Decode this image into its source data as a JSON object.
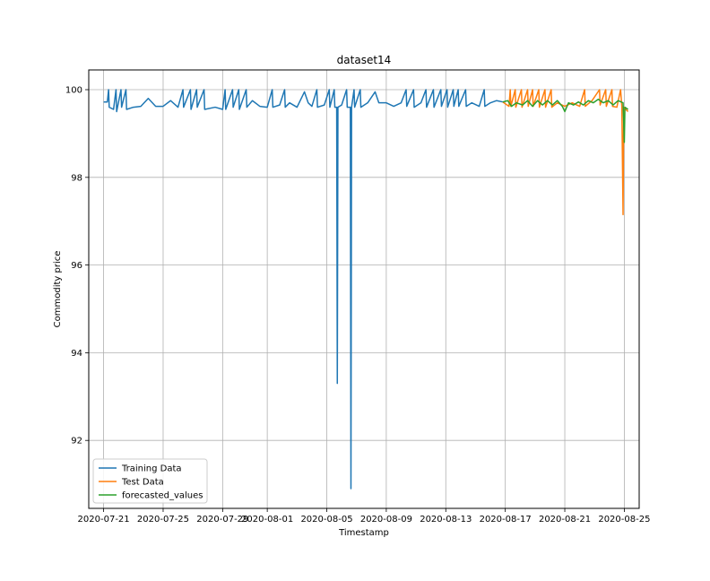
{
  "chart_data": {
    "type": "line",
    "title": "dataset14",
    "xlabel": "Timestamp",
    "ylabel": "Commodity price",
    "x_ticks": [
      "2020-07-21",
      "2020-07-25",
      "2020-07-29",
      "2020-08-01",
      "2020-08-05",
      "2020-08-09",
      "2020-08-13",
      "2020-08-17",
      "2020-08-21",
      "2020-08-25"
    ],
    "y_ticks": [
      92,
      94,
      96,
      98,
      100
    ],
    "xlim": [
      "2020-07-20",
      "2020-08-26"
    ],
    "ylim": [
      90.45,
      100.45
    ],
    "grid": true,
    "legend": "lower-left",
    "series": [
      {
        "name": "Training Data",
        "color": "#1f77b4",
        "points": [
          [
            "2020-07-21 00:00",
            99.72
          ],
          [
            "2020-07-21 06:00",
            99.72
          ],
          [
            "2020-07-21 08:00",
            100.0
          ],
          [
            "2020-07-21 09:00",
            99.6
          ],
          [
            "2020-07-21 16:00",
            99.55
          ],
          [
            "2020-07-21 20:00",
            100.0
          ],
          [
            "2020-07-21 21:00",
            99.5
          ],
          [
            "2020-07-22 04:00",
            100.0
          ],
          [
            "2020-07-22 05:00",
            99.6
          ],
          [
            "2020-07-22 12:00",
            100.0
          ],
          [
            "2020-07-22 13:00",
            99.55
          ],
          [
            "2020-07-23 00:00",
            99.6
          ],
          [
            "2020-07-23 12:00",
            99.62
          ],
          [
            "2020-07-24 00:00",
            99.8
          ],
          [
            "2020-07-24 12:00",
            99.62
          ],
          [
            "2020-07-25 00:00",
            99.62
          ],
          [
            "2020-07-25 12:00",
            99.75
          ],
          [
            "2020-07-26 00:00",
            99.6
          ],
          [
            "2020-07-26 08:00",
            100.0
          ],
          [
            "2020-07-26 09:00",
            99.6
          ],
          [
            "2020-07-26 20:00",
            100.0
          ],
          [
            "2020-07-26 21:00",
            99.55
          ],
          [
            "2020-07-27 06:00",
            100.0
          ],
          [
            "2020-07-27 07:00",
            99.6
          ],
          [
            "2020-07-27 18:00",
            100.0
          ],
          [
            "2020-07-27 19:00",
            99.55
          ],
          [
            "2020-07-28 12:00",
            99.6
          ],
          [
            "2020-07-29 00:00",
            99.55
          ],
          [
            "2020-07-29 04:00",
            100.0
          ],
          [
            "2020-07-29 05:00",
            99.55
          ],
          [
            "2020-07-29 16:00",
            100.0
          ],
          [
            "2020-07-29 17:00",
            99.6
          ],
          [
            "2020-07-30 02:00",
            100.0
          ],
          [
            "2020-07-30 03:00",
            99.55
          ],
          [
            "2020-07-30 14:00",
            100.0
          ],
          [
            "2020-07-30 15:00",
            99.6
          ],
          [
            "2020-07-31 00:00",
            99.75
          ],
          [
            "2020-07-31 12:00",
            99.62
          ],
          [
            "2020-08-01 00:00",
            99.6
          ],
          [
            "2020-08-01 08:00",
            100.0
          ],
          [
            "2020-08-01 09:00",
            99.6
          ],
          [
            "2020-08-01 20:00",
            99.65
          ],
          [
            "2020-08-02 04:00",
            100.0
          ],
          [
            "2020-08-02 05:00",
            99.6
          ],
          [
            "2020-08-02 12:00",
            99.7
          ],
          [
            "2020-08-03 00:00",
            99.6
          ],
          [
            "2020-08-03 12:00",
            99.95
          ],
          [
            "2020-08-03 18:00",
            99.7
          ],
          [
            "2020-08-04 00:00",
            99.62
          ],
          [
            "2020-08-04 08:00",
            100.0
          ],
          [
            "2020-08-04 09:00",
            99.6
          ],
          [
            "2020-08-04 20:00",
            99.65
          ],
          [
            "2020-08-05 04:00",
            100.0
          ],
          [
            "2020-08-05 05:00",
            99.6
          ],
          [
            "2020-08-05 12:00",
            100.0
          ],
          [
            "2020-08-05 13:00",
            99.6
          ],
          [
            "2020-08-05 16:00",
            99.6
          ],
          [
            "2020-08-05 17:00",
            93.3
          ],
          [
            "2020-08-05 18:00",
            99.6
          ],
          [
            "2020-08-06 00:00",
            99.65
          ],
          [
            "2020-08-06 08:00",
            100.0
          ],
          [
            "2020-08-06 09:00",
            99.6
          ],
          [
            "2020-08-06 14:00",
            99.6
          ],
          [
            "2020-08-06 15:00",
            90.9
          ],
          [
            "2020-08-06 16:00",
            99.6
          ],
          [
            "2020-08-06 20:00",
            100.0
          ],
          [
            "2020-08-06 21:00",
            99.6
          ],
          [
            "2020-08-07 06:00",
            100.0
          ],
          [
            "2020-08-07 07:00",
            99.6
          ],
          [
            "2020-08-07 18:00",
            99.7
          ],
          [
            "2020-08-08 06:00",
            99.95
          ],
          [
            "2020-08-08 12:00",
            99.7
          ],
          [
            "2020-08-09 00:00",
            99.7
          ],
          [
            "2020-08-09 12:00",
            99.62
          ],
          [
            "2020-08-10 00:00",
            99.7
          ],
          [
            "2020-08-10 08:00",
            100.0
          ],
          [
            "2020-08-10 09:00",
            99.62
          ],
          [
            "2020-08-10 20:00",
            100.0
          ],
          [
            "2020-08-10 21:00",
            99.6
          ],
          [
            "2020-08-11 08:00",
            99.7
          ],
          [
            "2020-08-11 16:00",
            100.0
          ],
          [
            "2020-08-11 17:00",
            99.6
          ],
          [
            "2020-08-12 04:00",
            100.0
          ],
          [
            "2020-08-12 05:00",
            99.6
          ],
          [
            "2020-08-12 16:00",
            100.0
          ],
          [
            "2020-08-12 17:00",
            99.62
          ],
          [
            "2020-08-13 02:00",
            100.0
          ],
          [
            "2020-08-13 03:00",
            99.6
          ],
          [
            "2020-08-13 12:00",
            100.0
          ],
          [
            "2020-08-13 13:00",
            99.62
          ],
          [
            "2020-08-13 20:00",
            100.0
          ],
          [
            "2020-08-13 21:00",
            99.62
          ],
          [
            "2020-08-14 08:00",
            100.0
          ],
          [
            "2020-08-14 09:00",
            99.62
          ],
          [
            "2020-08-14 18:00",
            99.7
          ],
          [
            "2020-08-15 06:00",
            99.62
          ],
          [
            "2020-08-15 14:00",
            100.0
          ],
          [
            "2020-08-15 15:00",
            99.62
          ],
          [
            "2020-08-16 00:00",
            99.7
          ],
          [
            "2020-08-16 10:00",
            99.75
          ],
          [
            "2020-08-16 20:00",
            99.72
          ]
        ]
      },
      {
        "name": "Test Data",
        "color": "#ff7f0e",
        "points": [
          [
            "2020-08-16 20:00",
            99.72
          ],
          [
            "2020-08-17 06:00",
            99.62
          ],
          [
            "2020-08-17 08:00",
            100.0
          ],
          [
            "2020-08-17 09:00",
            99.62
          ],
          [
            "2020-08-17 16:00",
            100.0
          ],
          [
            "2020-08-17 17:00",
            99.6
          ],
          [
            "2020-08-18 02:00",
            100.0
          ],
          [
            "2020-08-18 03:00",
            99.6
          ],
          [
            "2020-08-18 12:00",
            100.0
          ],
          [
            "2020-08-18 13:00",
            99.62
          ],
          [
            "2020-08-18 20:00",
            100.0
          ],
          [
            "2020-08-18 21:00",
            99.62
          ],
          [
            "2020-08-19 06:00",
            100.0
          ],
          [
            "2020-08-19 07:00",
            99.6
          ],
          [
            "2020-08-19 16:00",
            100.0
          ],
          [
            "2020-08-19 17:00",
            99.6
          ],
          [
            "2020-08-20 02:00",
            100.0
          ],
          [
            "2020-08-20 03:00",
            99.6
          ],
          [
            "2020-08-20 12:00",
            99.7
          ],
          [
            "2020-08-21 00:00",
            99.62
          ],
          [
            "2020-08-21 12:00",
            99.7
          ],
          [
            "2020-08-22 00:00",
            99.62
          ],
          [
            "2020-08-22 08:00",
            100.0
          ],
          [
            "2020-08-22 09:00",
            99.62
          ],
          [
            "2020-08-22 20:00",
            99.75
          ],
          [
            "2020-08-23 08:00",
            100.0
          ],
          [
            "2020-08-23 09:00",
            99.65
          ],
          [
            "2020-08-23 18:00",
            100.0
          ],
          [
            "2020-08-23 19:00",
            99.62
          ],
          [
            "2020-08-24 04:00",
            100.0
          ],
          [
            "2020-08-24 05:00",
            99.62
          ],
          [
            "2020-08-24 12:00",
            99.6
          ],
          [
            "2020-08-24 18:00",
            100.0
          ],
          [
            "2020-08-24 20:00",
            99.62
          ],
          [
            "2020-08-24 22:00",
            97.15
          ],
          [
            "2020-08-24 23:00",
            99.6
          ],
          [
            "2020-08-25 06:00",
            99.5
          ]
        ]
      },
      {
        "name": "forecasted_values",
        "color": "#2ca02c",
        "points": [
          [
            "2020-08-16 20:00",
            99.72
          ],
          [
            "2020-08-17 04:00",
            99.75
          ],
          [
            "2020-08-17 10:00",
            99.62
          ],
          [
            "2020-08-17 18:00",
            99.7
          ],
          [
            "2020-08-18 04:00",
            99.65
          ],
          [
            "2020-08-18 12:00",
            99.75
          ],
          [
            "2020-08-18 20:00",
            99.62
          ],
          [
            "2020-08-19 04:00",
            99.75
          ],
          [
            "2020-08-19 12:00",
            99.65
          ],
          [
            "2020-08-19 20:00",
            99.75
          ],
          [
            "2020-08-20 04:00",
            99.65
          ],
          [
            "2020-08-20 12:00",
            99.75
          ],
          [
            "2020-08-20 20:00",
            99.62
          ],
          [
            "2020-08-21 00:00",
            99.5
          ],
          [
            "2020-08-21 06:00",
            99.7
          ],
          [
            "2020-08-21 14:00",
            99.65
          ],
          [
            "2020-08-21 22:00",
            99.72
          ],
          [
            "2020-08-22 06:00",
            99.65
          ],
          [
            "2020-08-22 14:00",
            99.75
          ],
          [
            "2020-08-22 22:00",
            99.7
          ],
          [
            "2020-08-23 06:00",
            99.78
          ],
          [
            "2020-08-23 14:00",
            99.7
          ],
          [
            "2020-08-23 22:00",
            99.75
          ],
          [
            "2020-08-24 06:00",
            99.65
          ],
          [
            "2020-08-24 14:00",
            99.75
          ],
          [
            "2020-08-24 22:00",
            99.7
          ],
          [
            "2020-08-25 00:00",
            98.8
          ],
          [
            "2020-08-25 01:00",
            99.6
          ],
          [
            "2020-08-25 06:00",
            99.55
          ]
        ]
      }
    ]
  }
}
